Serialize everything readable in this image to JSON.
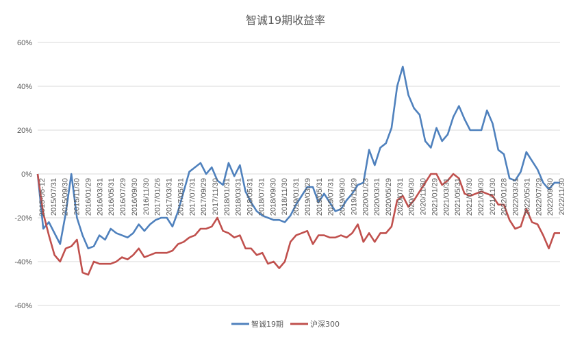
{
  "chart_data": {
    "type": "line",
    "title": "智诚19期收益率",
    "xlabel": "",
    "ylabel": "",
    "ylim": [
      -0.6,
      0.6
    ],
    "yticks": [
      "60%",
      "40%",
      "20%",
      "0%",
      "-20%",
      "-40%",
      "-60%"
    ],
    "grid": "horizontal",
    "legend_position": "bottom",
    "x_tick_labels": [
      "2015-06-12",
      "2015/07/31",
      "2015/09/30",
      "2015/11/30",
      "2016/01/29",
      "2016/03/31",
      "2016/05/31",
      "2016/07/29",
      "2016/09/30",
      "2016/11/30",
      "2017/01/26",
      "2017/03/31",
      "2017/05/31",
      "2017/07/31",
      "2017/09/29",
      "2017/11/30",
      "2018/01/31",
      "2018/03/31",
      "2018/05/31",
      "2018/07/31",
      "2018/09/30",
      "2018/11/30",
      "2019/01/31",
      "2019/03/29",
      "2019/05/31",
      "2019/07/31",
      "2019/09/30",
      "2019/11/29",
      "2020/01/23",
      "2020/03/31",
      "2020/05/29",
      "2020/07/31",
      "2020/09/30",
      "2020/11/30",
      "2021/01/29",
      "2021/03/31",
      "2021/05/31",
      "2021/07/30",
      "2021/09/30",
      "2021/11/30",
      "2022/01/28",
      "2022/03/31",
      "2022/05/31",
      "2022/07/29",
      "2022/09/30",
      "2022/11/30"
    ],
    "x_tick_labels_visible": [
      "2015-06-12",
      "2015/07/31",
      "2015/09/30",
      "2015/11/30",
      "2016/01/29",
      "2016/03/31",
      "2016/05/31",
      "2016/07/29",
      "2016/09/30",
      "2016/11/30",
      "2017/01/26",
      "2017/03/31",
      "2017/05/31",
      "2017/07/31",
      "2017/09/29",
      "2017/11/30",
      "2018/01/31",
      "2018/03/31",
      "2018/05/31",
      "2018/07/31",
      "2018/09/30",
      "2018/11/30",
      "2019/01/31",
      "2019/03/29",
      "2019/05/31",
      "2019/07/31",
      "2019/09/30",
      "2019/11/29",
      "2020/01/23",
      "2020/03/31",
      "2020/05/29",
      "2020/07/31",
      "2020/09/30",
      "2020/11/30",
      "2021/01/29",
      "2021/03/31",
      "2021/05/31",
      "2021/07/30",
      "2021/09/30",
      "2021/11/30",
      "2022/01/28",
      "2022/03/31",
      "2022/05/31",
      "2022/07/29",
      "2022/09/30",
      "2022/11/30"
    ],
    "series": [
      {
        "name": "智诚19期",
        "color": "#4f81bd",
        "values": [
          0.0,
          -0.25,
          -0.22,
          -0.27,
          -0.32,
          -0.18,
          0.0,
          -0.2,
          -0.28,
          -0.34,
          -0.33,
          -0.28,
          -0.3,
          -0.25,
          -0.27,
          -0.28,
          -0.29,
          -0.27,
          -0.23,
          -0.26,
          -0.23,
          -0.21,
          -0.2,
          -0.2,
          -0.24,
          -0.17,
          -0.08,
          0.01,
          0.03,
          0.05,
          0.0,
          0.03,
          -0.03,
          -0.05,
          0.05,
          -0.01,
          0.04,
          -0.08,
          -0.13,
          -0.17,
          -0.19,
          -0.2,
          -0.21,
          -0.21,
          -0.22,
          -0.19,
          -0.14,
          -0.1,
          -0.06,
          -0.06,
          -0.13,
          -0.09,
          -0.13,
          -0.17,
          -0.16,
          -0.12,
          -0.09,
          -0.05,
          -0.04,
          0.11,
          0.04,
          0.12,
          0.14,
          0.21,
          0.4,
          0.49,
          0.36,
          0.3,
          0.27,
          0.15,
          0.12,
          0.21,
          0.15,
          0.18,
          0.26,
          0.31,
          0.25,
          0.2,
          0.2,
          0.2,
          0.29,
          0.23,
          0.11,
          0.09,
          -0.02,
          -0.03,
          0.01,
          0.1,
          0.06,
          0.02,
          -0.04,
          -0.07,
          -0.04,
          -0.04
        ]
      },
      {
        "name": "沪深300",
        "color": "#c0504d",
        "values": [
          0.0,
          -0.18,
          -0.28,
          -0.37,
          -0.4,
          -0.34,
          -0.33,
          -0.3,
          -0.45,
          -0.46,
          -0.4,
          -0.41,
          -0.41,
          -0.41,
          -0.4,
          -0.38,
          -0.39,
          -0.37,
          -0.34,
          -0.38,
          -0.37,
          -0.36,
          -0.36,
          -0.36,
          -0.35,
          -0.32,
          -0.31,
          -0.29,
          -0.28,
          -0.25,
          -0.25,
          -0.24,
          -0.2,
          -0.26,
          -0.27,
          -0.29,
          -0.28,
          -0.34,
          -0.34,
          -0.37,
          -0.36,
          -0.41,
          -0.4,
          -0.43,
          -0.4,
          -0.31,
          -0.28,
          -0.27,
          -0.26,
          -0.32,
          -0.28,
          -0.28,
          -0.29,
          -0.29,
          -0.28,
          -0.29,
          -0.27,
          -0.23,
          -0.31,
          -0.27,
          -0.31,
          -0.27,
          -0.27,
          -0.24,
          -0.12,
          -0.1,
          -0.15,
          -0.12,
          -0.08,
          -0.04,
          0.0,
          0.0,
          -0.05,
          -0.03,
          0.0,
          -0.02,
          -0.09,
          -0.1,
          -0.09,
          -0.08,
          -0.09,
          -0.1,
          -0.14,
          -0.14,
          -0.21,
          -0.25,
          -0.24,
          -0.16,
          -0.22,
          -0.23,
          -0.28,
          -0.34,
          -0.27,
          -0.27
        ]
      }
    ]
  }
}
